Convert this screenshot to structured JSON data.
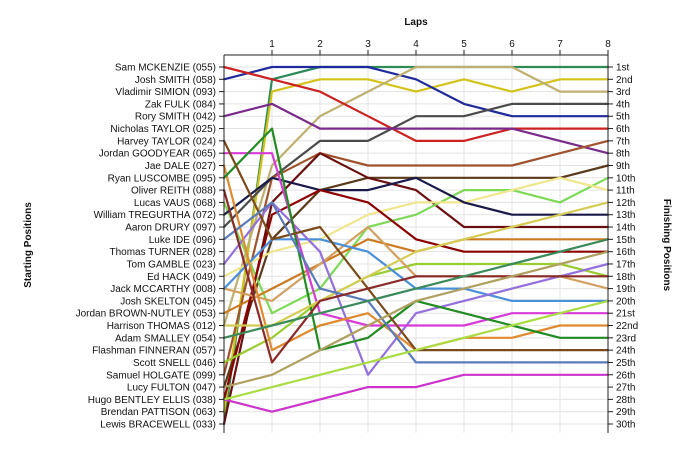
{
  "chart_data": {
    "type": "line",
    "title": "",
    "x_axis_title": "Laps",
    "left_axis_title": "Starting Positions",
    "right_axis_title": "Finishing Positions",
    "x_ticks": [
      1,
      2,
      3,
      4,
      5,
      6,
      7,
      8
    ],
    "x_range": [
      0,
      8
    ],
    "y_range": [
      1,
      30
    ],
    "grid": true,
    "starting_labels": [
      "Sam MCKENZIE (055)",
      "Josh SMITH (058)",
      "Vladimir SIMION (093)",
      "Zak FULK (084)",
      "Rory SMITH (042)",
      "Nicholas TAYLOR (025)",
      "Harvey TAYLOR (024)",
      "Jordan GOODYEAR (065)",
      "Jae DALE (027)",
      "Ryan LUSCOMBE (095)",
      "Oliver REITH (088)",
      "Lucas VAUS (068)",
      "William TREGURTHA (072)",
      "Aaron DRURY (097)",
      "Luke IDE (096)",
      "Thomas TURNER (028)",
      "Tom GAMBLE (023)",
      "Ed HACK (049)",
      "Jack MCCARTHY (008)",
      "Josh SKELTON (045)",
      "Jordan BROWN-NUTLEY (053)",
      "Harrison THOMAS (012)",
      "Adam SMALLEY (054)",
      "Flashman FINNERAN (057)",
      "Scott SNELL (046)",
      "Samuel HOLGATE (099)",
      "Lucy FULTON (047)",
      "Hugo BENTLEY ELLIS (038)",
      "Brendan PATTISON (063)",
      "Lewis BRACEWELL (033)"
    ],
    "finishing_labels": [
      "1st",
      "2nd",
      "3rd",
      "4th",
      "5th",
      "6th",
      "7th",
      "8th",
      "9th",
      "10th",
      "11th",
      "12th",
      "13th",
      "14th",
      "15th",
      "16th",
      "17th",
      "18th",
      "19th",
      "20th",
      "21st",
      "22nd",
      "23rd",
      "24th",
      "25th",
      "26th",
      "27th",
      "28th",
      "29th",
      "30th"
    ],
    "series": [
      {
        "color": "#2e8b57",
        "values": [
          30,
          2,
          1,
          1,
          1,
          1,
          1,
          1,
          1
        ]
      },
      {
        "color": "#d4c21a",
        "values": [
          29,
          3,
          2,
          2,
          3,
          2,
          3,
          2,
          2
        ]
      },
      {
        "color": "#1f2a9c",
        "values": [
          2,
          1,
          1,
          1,
          2,
          4,
          5,
          5,
          5
        ]
      },
      {
        "color": "#c0b070",
        "values": [
          22,
          9,
          5,
          3,
          1,
          1,
          1,
          3,
          3
        ]
      },
      {
        "color": "#4a4a4a",
        "values": [
          14,
          10,
          7,
          7,
          5,
          5,
          4,
          4,
          4
        ]
      },
      {
        "color": "#cc2222",
        "values": [
          1,
          2,
          3,
          5,
          7,
          7,
          6,
          6,
          6
        ]
      },
      {
        "color": "#7a2a8a",
        "values": [
          5,
          4,
          6,
          6,
          6,
          6,
          6,
          7,
          8
        ]
      },
      {
        "color": "#a0522d",
        "values": [
          26,
          10,
          8,
          9,
          9,
          9,
          9,
          8,
          7
        ]
      },
      {
        "color": "#5a3a1a",
        "values": [
          27,
          15,
          11,
          10,
          10,
          10,
          10,
          10,
          9
        ]
      },
      {
        "color": "#6a0f0f",
        "values": [
          30,
          12,
          8,
          10,
          11,
          14,
          14,
          14,
          14
        ]
      },
      {
        "color": "#7ed957",
        "values": [
          12,
          21,
          19,
          14,
          13,
          11,
          11,
          12,
          10
        ]
      },
      {
        "color": "#f0e68c",
        "values": [
          18,
          16,
          15,
          13,
          12,
          12,
          11,
          10,
          11
        ]
      },
      {
        "color": "#1a1a4a",
        "values": [
          13,
          10,
          11,
          11,
          10,
          12,
          13,
          13,
          13
        ]
      },
      {
        "color": "#cc7a22",
        "values": [
          21,
          19,
          17,
          15,
          16,
          15,
          15,
          15,
          15
        ]
      },
      {
        "color": "#8b0000",
        "values": [
          28,
          13,
          11,
          12,
          15,
          16,
          16,
          16,
          16
        ]
      },
      {
        "color": "#9acd32",
        "values": [
          25,
          23,
          20,
          18,
          17,
          17,
          17,
          17,
          18
        ]
      },
      {
        "color": "#d2a060",
        "values": [
          19,
          20,
          17,
          14,
          18,
          18,
          18,
          18,
          19
        ]
      },
      {
        "color": "#4a90d9",
        "values": [
          19,
          15,
          15,
          16,
          19,
          19,
          20,
          20,
          20
        ]
      },
      {
        "color": "#9370db",
        "values": [
          17,
          12,
          16,
          26,
          21,
          20,
          19,
          18,
          17
        ]
      },
      {
        "color": "#d83bd8",
        "values": [
          8,
          8,
          21,
          22,
          22,
          22,
          21,
          21,
          21
        ]
      },
      {
        "color": "#e08a30",
        "values": [
          9,
          24,
          22,
          21,
          24,
          23,
          23,
          22,
          22
        ]
      },
      {
        "color": "#228b22",
        "values": [
          10,
          6,
          24,
          23,
          20,
          21,
          22,
          23,
          23
        ]
      },
      {
        "color": "#7a4a1a",
        "values": [
          7,
          15,
          14,
          19,
          24,
          24,
          24,
          24,
          24
        ]
      },
      {
        "color": "#d4cc55",
        "values": [
          22,
          22,
          20,
          18,
          16,
          15,
          14,
          13,
          12
        ]
      },
      {
        "color": "#5a7ab9",
        "values": [
          15,
          12,
          19,
          20,
          25,
          25,
          25,
          25,
          25
        ]
      },
      {
        "color": "#8a2a2a",
        "values": [
          11,
          25,
          20,
          19,
          18,
          18,
          18,
          18,
          18
        ]
      },
      {
        "color": "#cc33cc",
        "values": [
          28,
          29,
          28,
          27,
          27,
          26,
          26,
          26,
          26
        ]
      },
      {
        "color": "#aadd44",
        "values": [
          28,
          27,
          26,
          25,
          24,
          23,
          22,
          21,
          20
        ]
      },
      {
        "color": "#b0a060",
        "values": [
          27,
          26,
          24,
          22,
          20,
          19,
          18,
          17,
          16
        ]
      },
      {
        "color": "#3a8a5a",
        "values": [
          23,
          22,
          21,
          20,
          19,
          18,
          17,
          16,
          15
        ]
      }
    ]
  }
}
